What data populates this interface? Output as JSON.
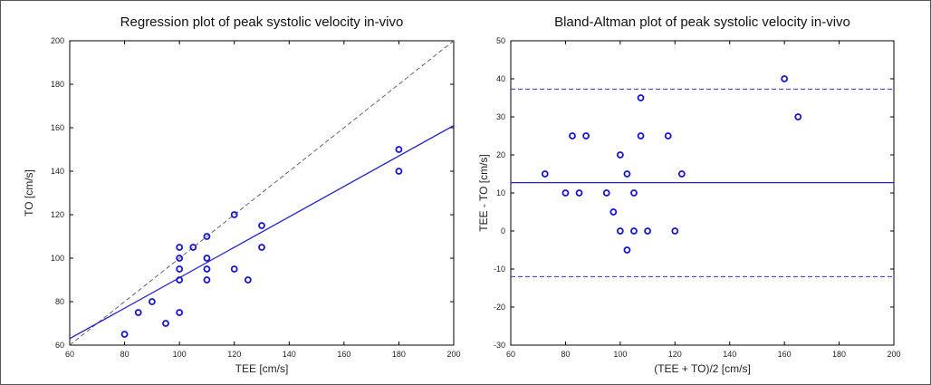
{
  "chart_data": [
    {
      "type": "scatter",
      "title": "Regression plot of peak systolic velocity in-vivo",
      "xlabel": "TEE [cm/s]",
      "ylabel": "TO [cm/s]",
      "xlim": [
        60,
        200
      ],
      "ylim": [
        60,
        200
      ],
      "xticks": [
        "60",
        "80",
        "100",
        "120",
        "140",
        "160",
        "180",
        "200"
      ],
      "yticks": [
        "60",
        "80",
        "100",
        "120",
        "140",
        "160",
        "180",
        "200"
      ],
      "grid": false,
      "points": [
        {
          "x": 80,
          "y": 65
        },
        {
          "x": 85,
          "y": 75
        },
        {
          "x": 90,
          "y": 80
        },
        {
          "x": 95,
          "y": 70
        },
        {
          "x": 100,
          "y": 75
        },
        {
          "x": 100,
          "y": 90
        },
        {
          "x": 100,
          "y": 95
        },
        {
          "x": 100,
          "y": 100
        },
        {
          "x": 100,
          "y": 105
        },
        {
          "x": 105,
          "y": 105
        },
        {
          "x": 110,
          "y": 90
        },
        {
          "x": 110,
          "y": 95
        },
        {
          "x": 110,
          "y": 100
        },
        {
          "x": 110,
          "y": 110
        },
        {
          "x": 120,
          "y": 95
        },
        {
          "x": 120,
          "y": 120
        },
        {
          "x": 125,
          "y": 90
        },
        {
          "x": 130,
          "y": 105
        },
        {
          "x": 130,
          "y": 115
        },
        {
          "x": 180,
          "y": 140
        },
        {
          "x": 180,
          "y": 150
        }
      ],
      "lines": [
        {
          "kind": "identity",
          "style": "dashed",
          "color": "#666666",
          "x": [
            60,
            200
          ],
          "y": [
            60,
            200
          ]
        },
        {
          "kind": "regression",
          "style": "solid",
          "color": "#2222cc",
          "x": [
            60,
            200
          ],
          "y": [
            63,
            161
          ]
        }
      ],
      "marker_color": "#1515d6"
    },
    {
      "type": "scatter",
      "title": "Bland-Altman plot of peak systolic velocity in-vivo",
      "xlabel": "(TEE + TO)/2     [cm/s]",
      "ylabel": "TEE - TO    [cm/s]",
      "xlim": [
        60,
        200
      ],
      "ylim": [
        -30,
        50
      ],
      "xticks": [
        "60",
        "80",
        "100",
        "120",
        "140",
        "160",
        "180",
        "200"
      ],
      "yticks": [
        "-30",
        "-20",
        "-10",
        "0",
        "10",
        "20",
        "30",
        "40",
        "50"
      ],
      "grid": false,
      "points": [
        {
          "x": 72.5,
          "y": 15
        },
        {
          "x": 80,
          "y": 10
        },
        {
          "x": 82.5,
          "y": 25
        },
        {
          "x": 85,
          "y": 10
        },
        {
          "x": 87.5,
          "y": 25
        },
        {
          "x": 95,
          "y": 10
        },
        {
          "x": 97.5,
          "y": 5
        },
        {
          "x": 100,
          "y": 0
        },
        {
          "x": 100,
          "y": 20
        },
        {
          "x": 102.5,
          "y": -5
        },
        {
          "x": 102.5,
          "y": 15
        },
        {
          "x": 105,
          "y": 0
        },
        {
          "x": 105,
          "y": 10
        },
        {
          "x": 107.5,
          "y": 25
        },
        {
          "x": 107.5,
          "y": 35
        },
        {
          "x": 110,
          "y": 0
        },
        {
          "x": 117.5,
          "y": 25
        },
        {
          "x": 120,
          "y": 0
        },
        {
          "x": 122.5,
          "y": 15
        },
        {
          "x": 160,
          "y": 40
        },
        {
          "x": 165,
          "y": 30
        }
      ],
      "lines": [
        {
          "kind": "mean",
          "style": "solid",
          "color": "#2222cc",
          "y": 12.7
        },
        {
          "kind": "upper-limit",
          "style": "dashed",
          "color": "#3333cc",
          "y": 37.3
        },
        {
          "kind": "lower-limit",
          "style": "dashed",
          "color": "#3333cc",
          "y": -12.0
        }
      ],
      "marker_color": "#1515d6"
    }
  ]
}
